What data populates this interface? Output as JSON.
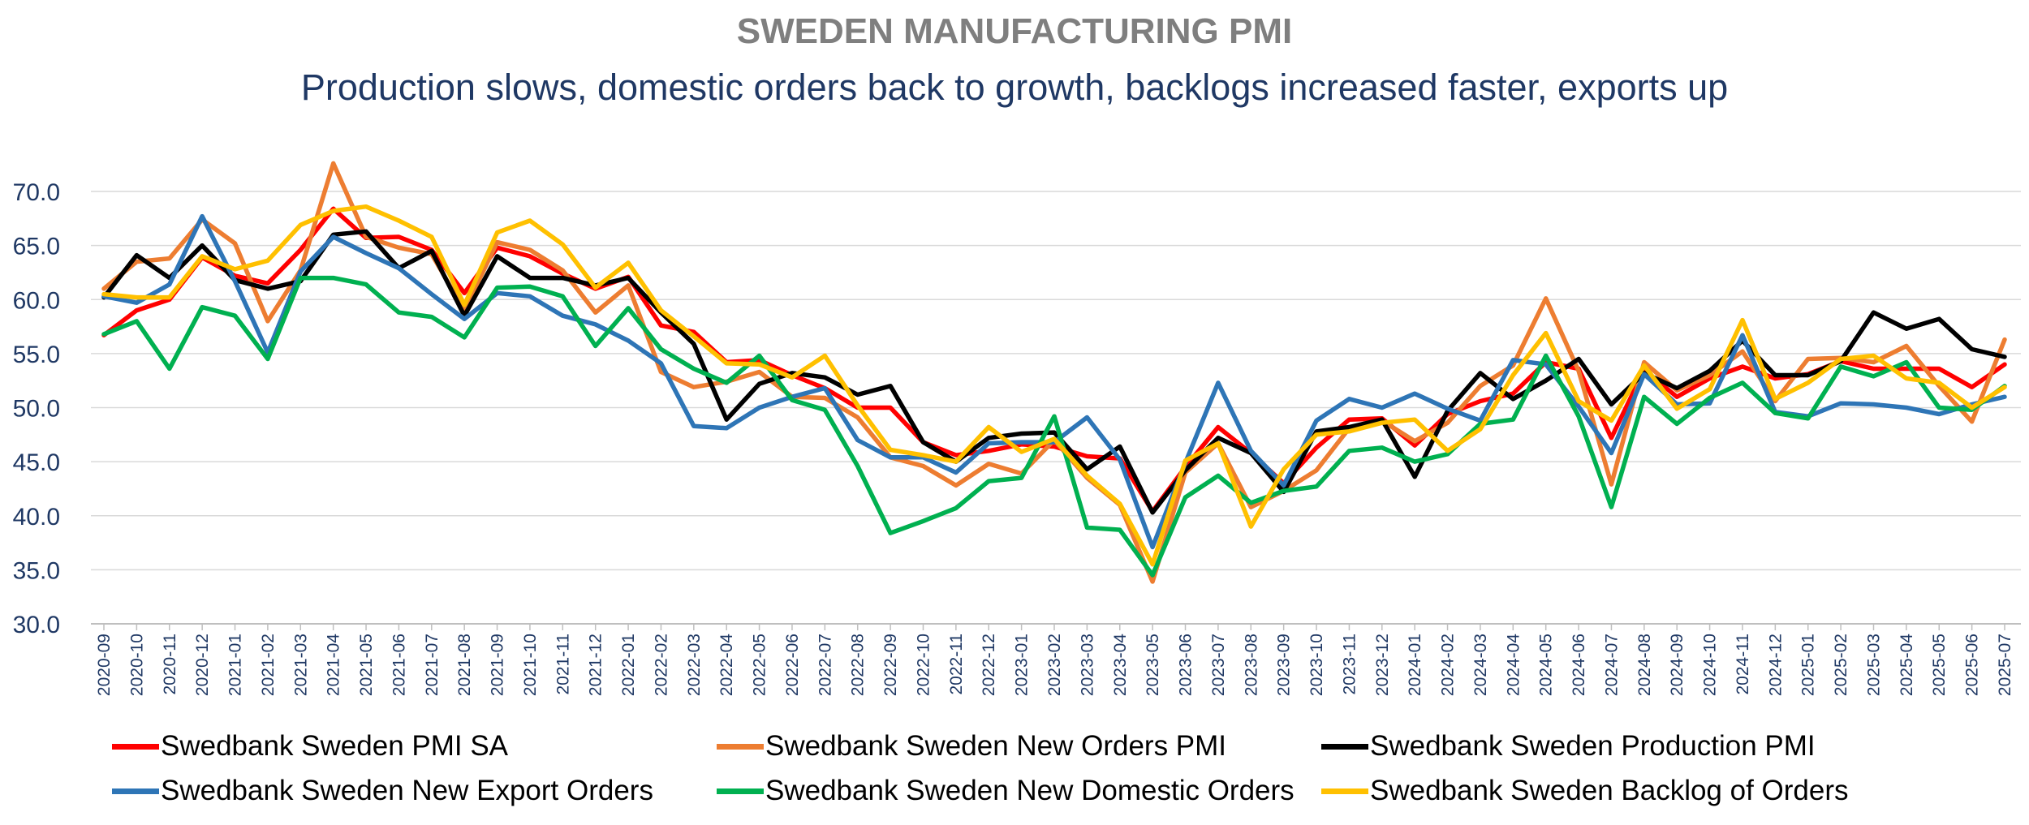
{
  "chart_data": {
    "type": "line",
    "title": "SWEDEN MANUFACTURING PMI",
    "subtitle": "Production slows, domestic orders back to  growth, backlogs increased faster, exports up",
    "xlabel": "",
    "ylabel": "",
    "ylim": [
      30,
      70
    ],
    "yticks": [
      "70.0",
      "65.0",
      "60.0",
      "55.0",
      "50.0",
      "45.0",
      "40.0",
      "35.0",
      "30.0"
    ],
    "grid": true,
    "legend_position": "bottom",
    "categories": [
      "2020-09",
      "2020-10",
      "2020-11",
      "2020-12",
      "2021-01",
      "2021-02",
      "2021-03",
      "2021-04",
      "2021-05",
      "2021-06",
      "2021-07",
      "2021-08",
      "2021-09",
      "2021-10",
      "2021-11",
      "2021-12",
      "2022-01",
      "2022-02",
      "2022-03",
      "2022-04",
      "2022-05",
      "2022-06",
      "2022-07",
      "2022-08",
      "2022-09",
      "2022-10",
      "2022-11",
      "2022-12",
      "2023-01",
      "2023-02",
      "2023-03",
      "2023-04",
      "2023-05",
      "2023-06",
      "2023-07",
      "2023-08",
      "2023-09",
      "2023-10",
      "2023-11",
      "2023-12",
      "2024-01",
      "2024-02",
      "2024-03",
      "2024-04",
      "2024-05",
      "2024-06",
      "2024-07",
      "2024-08",
      "2024-09",
      "2024-10",
      "2024-11",
      "2024-12",
      "2025-01",
      "2025-02",
      "2025-03",
      "2025-04",
      "2025-05",
      "2025-06",
      "2025-07"
    ],
    "series": [
      {
        "name": "Swedbank Sweden PMI SA",
        "color": "#ff0000",
        "values": [
          56.7,
          59.0,
          60.0,
          63.9,
          62.2,
          61.5,
          64.6,
          68.4,
          65.7,
          65.8,
          64.6,
          60.6,
          64.8,
          64.0,
          62.4,
          61.0,
          62.1,
          57.6,
          57.0,
          54.2,
          54.4,
          53.0,
          51.8,
          50.0,
          50.0,
          46.8,
          45.6,
          46.0,
          46.6,
          46.4,
          45.5,
          45.3,
          40.4,
          44.5,
          48.2,
          45.8,
          43.0,
          46.3,
          48.9,
          49.0,
          46.5,
          49.4,
          50.6,
          51.3,
          54.2,
          53.6,
          47.2,
          53.5,
          51.0,
          52.7,
          53.8,
          52.7,
          53.1,
          54.3,
          53.6,
          53.6,
          53.6,
          51.9,
          54.0
        ]
      },
      {
        "name": "Swedbank Sweden New Orders PMI",
        "color": "#ed7d31",
        "values": [
          61.0,
          63.5,
          63.8,
          67.4,
          65.2,
          58.0,
          62.7,
          72.6,
          65.8,
          64.8,
          64.2,
          59.0,
          65.3,
          64.6,
          62.7,
          58.8,
          61.3,
          53.3,
          51.9,
          52.4,
          53.3,
          51.0,
          50.9,
          49.1,
          45.4,
          44.6,
          42.8,
          44.8,
          43.9,
          47.0,
          43.5,
          41.0,
          33.9,
          44.0,
          46.7,
          40.8,
          42.3,
          44.2,
          48.1,
          48.8,
          46.9,
          48.6,
          52.0,
          53.9,
          60.1,
          53.4,
          42.9,
          54.2,
          51.6,
          53.0,
          55.2,
          50.6,
          54.5,
          54.6,
          54.2,
          55.7,
          52.0,
          48.7,
          56.3
        ]
      },
      {
        "name": "Swedbank Sweden Production PMI",
        "color": "#000000",
        "values": [
          60.2,
          64.1,
          62.0,
          65.0,
          61.8,
          61.0,
          61.7,
          66.0,
          66.3,
          62.9,
          64.5,
          58.5,
          64.0,
          62.0,
          62.0,
          61.3,
          62.0,
          58.8,
          55.9,
          48.9,
          52.2,
          53.2,
          52.8,
          51.2,
          52.0,
          46.8,
          45.0,
          47.2,
          47.6,
          47.7,
          44.3,
          46.4,
          40.3,
          44.2,
          47.2,
          45.8,
          42.2,
          47.8,
          48.2,
          48.9,
          43.6,
          49.7,
          53.2,
          50.8,
          52.5,
          54.5,
          50.3,
          53.2,
          51.8,
          53.4,
          56.2,
          53.0,
          53.0,
          54.3,
          58.8,
          57.3,
          58.2,
          55.4,
          54.7
        ]
      },
      {
        "name": "Swedbank Sweden New Export Orders",
        "color": "#2e75b6",
        "values": [
          60.3,
          59.7,
          61.4,
          67.7,
          61.7,
          55.1,
          62.6,
          65.8,
          64.3,
          62.9,
          60.5,
          58.2,
          60.6,
          60.3,
          58.5,
          57.7,
          56.2,
          54.1,
          48.3,
          48.1,
          50.0,
          51.0,
          51.8,
          47.0,
          45.4,
          45.4,
          44.0,
          46.7,
          46.8,
          46.8,
          49.1,
          45.2,
          37.1,
          44.9,
          52.3,
          46.0,
          42.8,
          48.8,
          50.8,
          50.0,
          51.3,
          49.9,
          48.8,
          54.4,
          54.0,
          50.1,
          45.8,
          53.1,
          50.3,
          50.4,
          56.7,
          49.6,
          49.2,
          50.4,
          50.3,
          50.0,
          49.4,
          50.3,
          51.0
        ]
      },
      {
        "name": "Swedbank Sweden New Domestic Orders",
        "color": "#00b050",
        "values": [
          56.8,
          58.0,
          53.6,
          59.3,
          58.5,
          54.5,
          62.0,
          62.0,
          61.4,
          58.8,
          58.4,
          56.5,
          61.1,
          61.2,
          60.3,
          55.7,
          59.2,
          55.4,
          53.6,
          52.3,
          54.8,
          50.7,
          49.8,
          44.6,
          38.4,
          39.5,
          40.7,
          43.2,
          43.5,
          49.2,
          38.9,
          38.7,
          34.5,
          41.7,
          43.7,
          41.2,
          42.3,
          42.7,
          46.0,
          46.3,
          45.0,
          45.7,
          48.5,
          48.9,
          54.8,
          49.2,
          40.8,
          51.0,
          48.5,
          50.9,
          52.3,
          49.5,
          49.0,
          53.8,
          52.9,
          54.2,
          50.0,
          49.8,
          52.0
        ]
      },
      {
        "name": "Swedbank Sweden Backlog of Orders",
        "color": "#ffc000",
        "values": [
          60.5,
          60.2,
          60.2,
          64.0,
          62.8,
          63.6,
          66.9,
          68.2,
          68.6,
          67.3,
          65.8,
          59.5,
          66.2,
          67.3,
          65.1,
          61.1,
          63.4,
          59.0,
          56.6,
          54.1,
          54.0,
          52.8,
          54.8,
          50.2,
          46.1,
          45.6,
          45.0,
          48.2,
          45.9,
          47.1,
          43.7,
          41.1,
          35.5,
          45.1,
          46.7,
          39.0,
          44.3,
          47.5,
          47.8,
          48.6,
          48.9,
          46.0,
          48.0,
          53.0,
          56.9,
          50.6,
          48.8,
          53.9,
          49.9,
          51.7,
          58.1,
          50.8,
          52.3,
          54.5,
          54.8,
          52.7,
          52.3,
          50.0,
          51.9
        ]
      }
    ]
  }
}
